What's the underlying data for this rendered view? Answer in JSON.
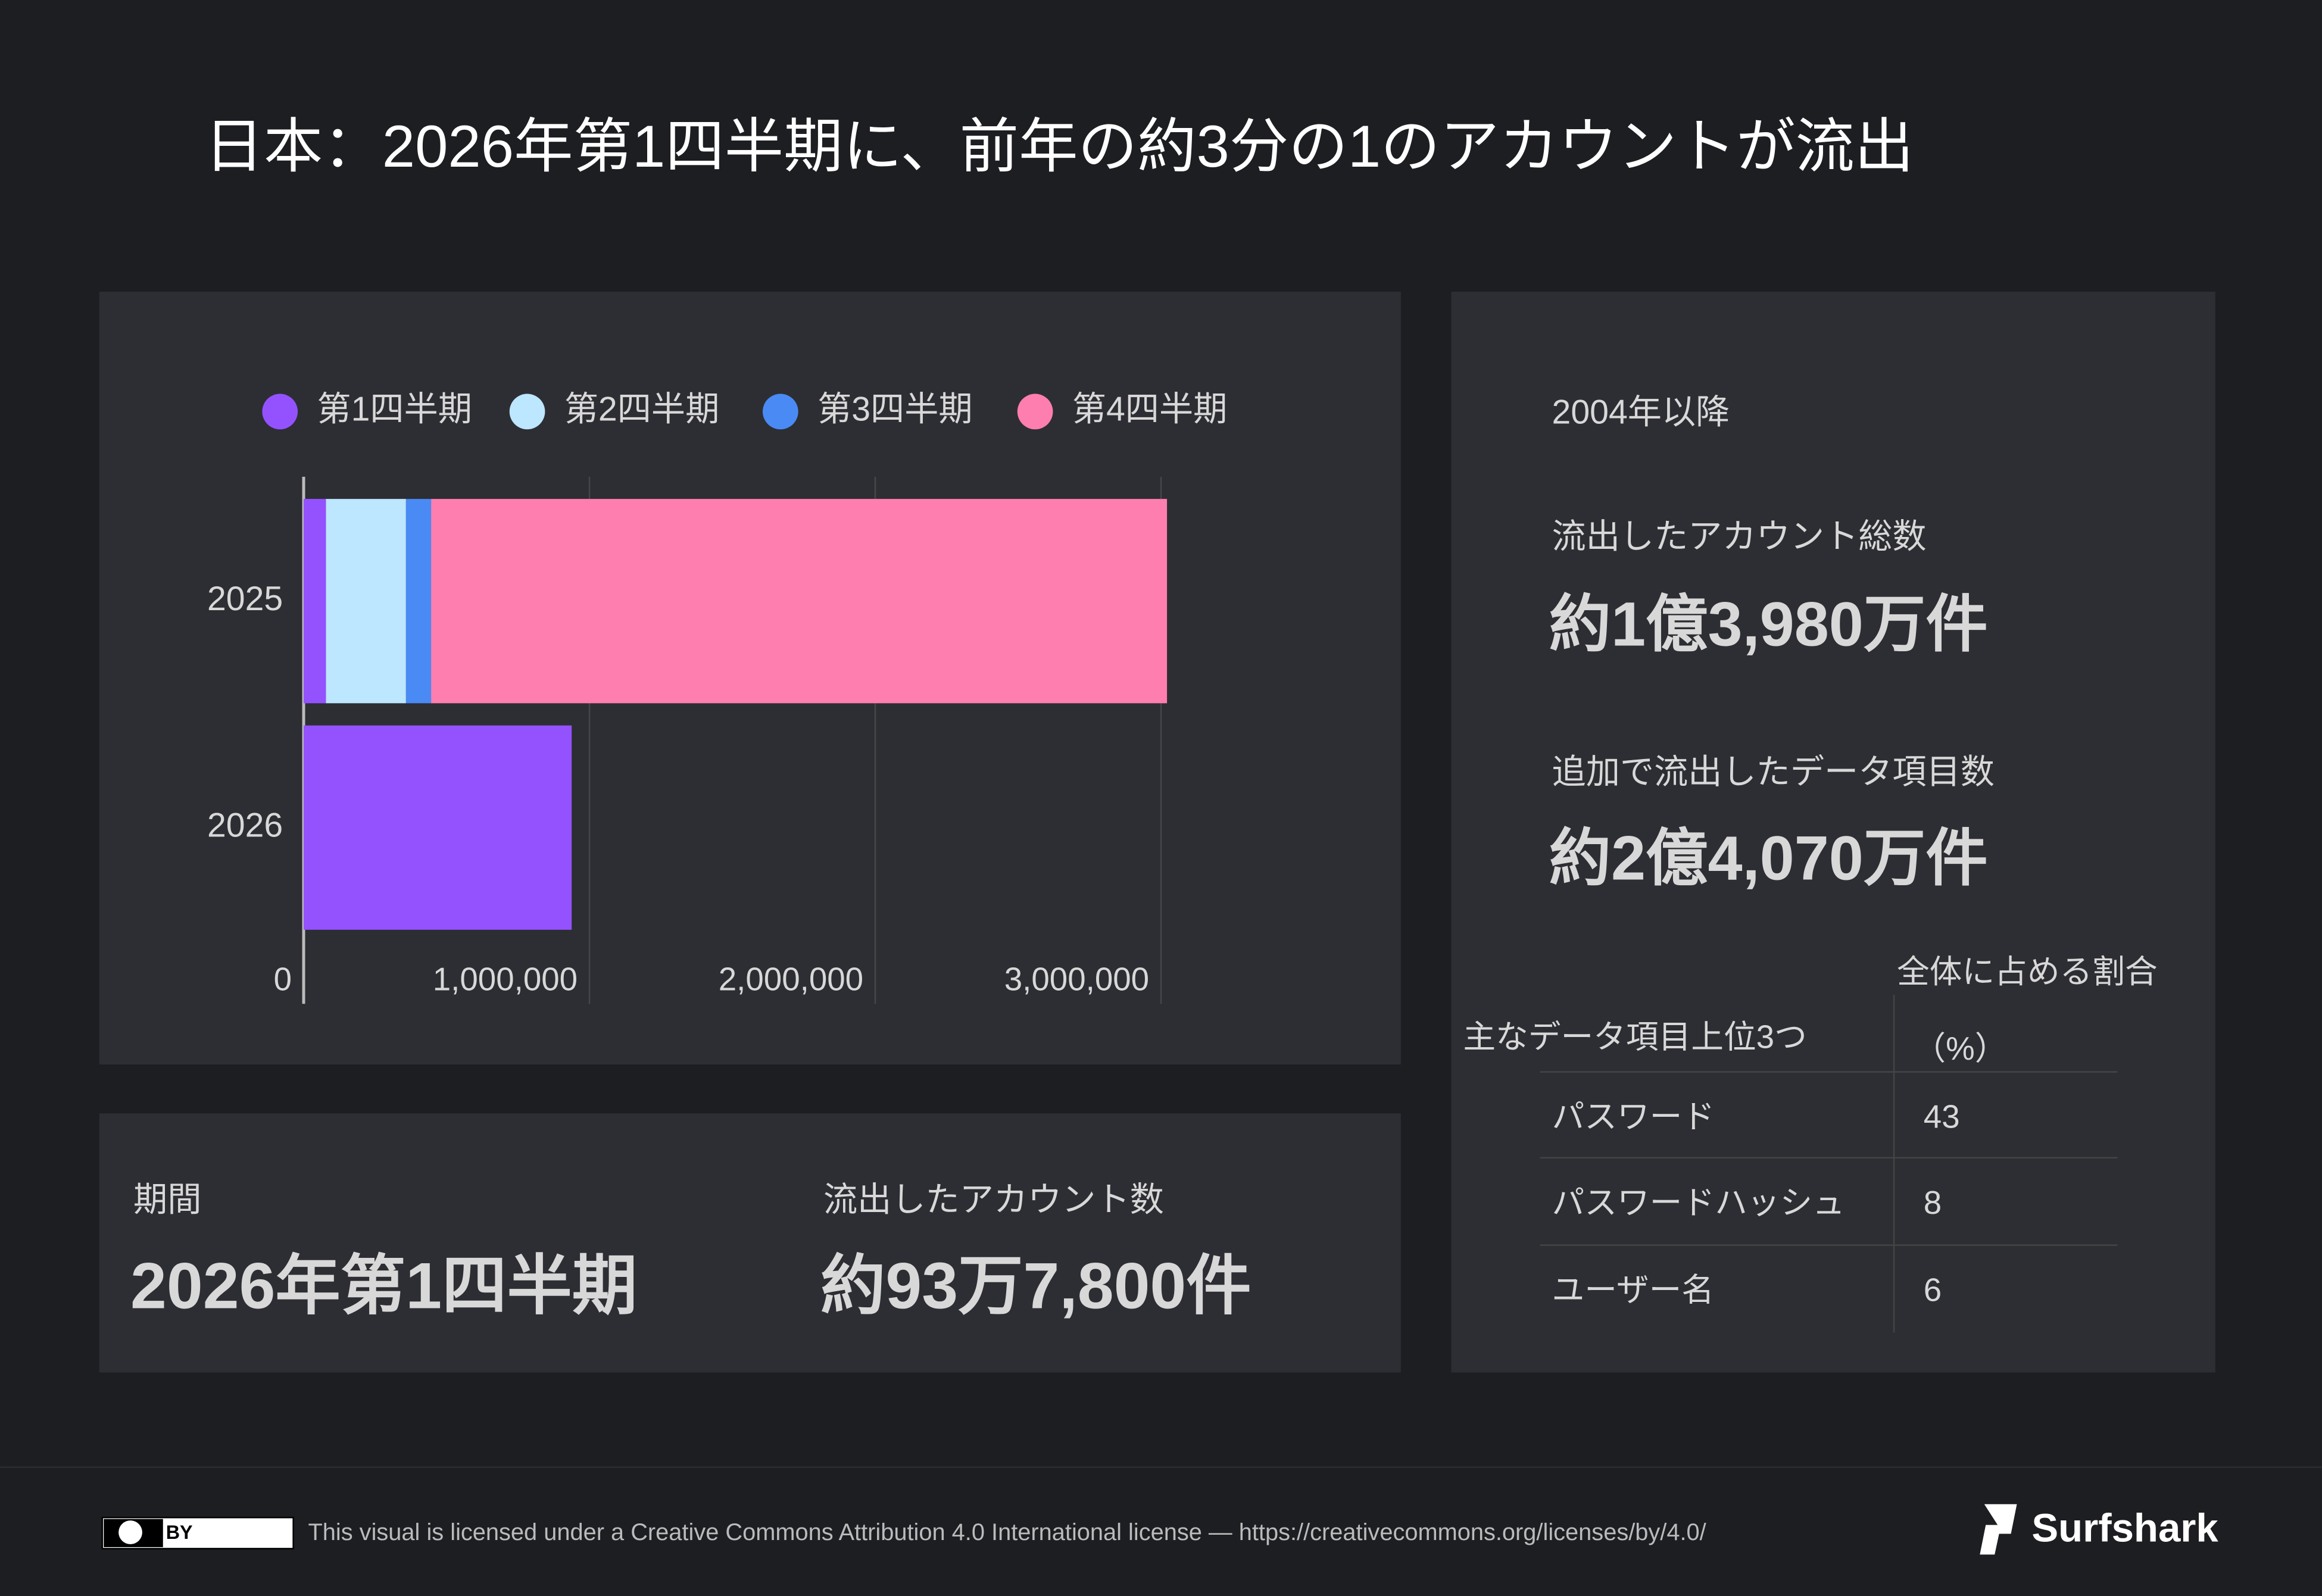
{
  "title": "日本：2026年第1四半期に、前年の約3分の1のアカウントが流出",
  "chart_data": {
    "type": "bar",
    "orientation": "horizontal",
    "stacked": true,
    "categories": [
      "2025",
      "2026"
    ],
    "series": [
      {
        "name": "第1四半期",
        "color": "#9452fe",
        "values": [
          78000,
          937800
        ]
      },
      {
        "name": "第2四半期",
        "color": "#bde6ff",
        "values": [
          280000,
          null
        ]
      },
      {
        "name": "第3四半期",
        "color": "#4a8af5",
        "values": [
          88000,
          null
        ]
      },
      {
        "name": "第4四半期",
        "color": "#ff7eb0",
        "values": [
          2575000,
          null
        ]
      }
    ],
    "xlim": [
      0,
      3100000
    ],
    "xticks": [
      0,
      {
        "value": 1000000,
        "label": "1,000,000"
      },
      {
        "value": 2000000,
        "label": "2,000,000"
      },
      {
        "value": 3000000,
        "label": "3,000,000"
      }
    ],
    "grid": true,
    "legend": "top"
  },
  "summary": {
    "since": "2004年以降",
    "total_label": "流出したアカウント総数",
    "total_value": "約1億3,980万件",
    "extra_label": "追加で流出したデータ項目数",
    "extra_value": "約2億4,070万件"
  },
  "period": {
    "label": "期間",
    "value": "2026年第1四半期",
    "accounts_label": "流出したアカウント数",
    "accounts_value": "約93万7,800件"
  },
  "table": {
    "header_item": "主なデータ項目上位3つ",
    "header_share": [
      "全体に占める割合",
      "（%）"
    ],
    "rows": [
      [
        "パスワード",
        43
      ],
      [
        "パスワードハッシュ",
        8
      ],
      [
        "ユーザー名",
        6
      ]
    ]
  },
  "footer": {
    "badge": "BY",
    "license": "This visual is licensed under a Creative Commons Attribution 4.0 International license — https://creativecommons.org/licenses/by/4.0/",
    "brand": "Surfshark"
  }
}
